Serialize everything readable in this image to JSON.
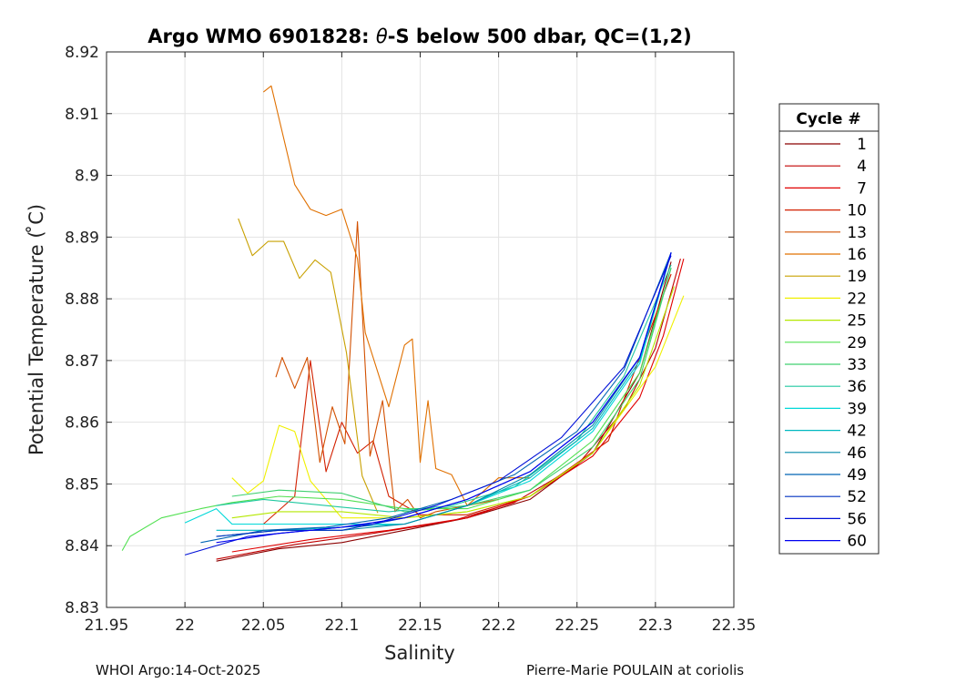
{
  "chart_data": {
    "type": "line",
    "title_prefix": "Argo WMO 6901828: ",
    "title_theta": "θ",
    "title_suffix": "-S below 500 dbar,  QC=(1,2)",
    "xlabel": "Salinity",
    "ylabel": "Potential Temperature ( ̊C)",
    "xlim": [
      21.95,
      22.35
    ],
    "ylim": [
      8.83,
      8.92
    ],
    "xticks": [
      "21.95",
      "22",
      "22.05",
      "22.1",
      "22.15",
      "22.2",
      "22.25",
      "22.3",
      "22.35"
    ],
    "yticks": [
      "8.83",
      "8.84",
      "8.85",
      "8.86",
      "8.87",
      "8.88",
      "8.89",
      "8.9",
      "8.91",
      "8.92"
    ],
    "grid": true,
    "legend_title": "Cycle #",
    "legend_position": "right",
    "series": [
      {
        "name": "1",
        "color": "#8b0000",
        "x": [
          22.02,
          22.06,
          22.1,
          22.14,
          22.18,
          22.22,
          22.26,
          22.29,
          22.31
        ],
        "y": [
          8.8375,
          8.8395,
          8.8405,
          8.8425,
          8.8445,
          8.8475,
          8.855,
          8.868,
          8.886
        ]
      },
      {
        "name": "4",
        "color": "#c00000",
        "x": [
          22.02,
          22.07,
          22.12,
          22.17,
          22.21,
          22.25,
          22.28,
          22.3,
          22.316
        ],
        "y": [
          8.8378,
          8.8402,
          8.842,
          8.844,
          8.847,
          8.853,
          8.862,
          8.872,
          8.8865
        ]
      },
      {
        "name": "7",
        "color": "#e00000",
        "x": [
          22.03,
          22.08,
          22.13,
          22.18,
          22.22,
          22.26,
          22.29,
          22.305,
          22.318
        ],
        "y": [
          8.839,
          8.841,
          8.8425,
          8.8445,
          8.848,
          8.8545,
          8.864,
          8.874,
          8.8865
        ]
      },
      {
        "name": "10",
        "color": "#d22000",
        "x": [
          22.05,
          22.07,
          22.08,
          22.09,
          22.1,
          22.11,
          22.12,
          22.13,
          22.15,
          22.18,
          22.22,
          22.27,
          22.31
        ],
        "y": [
          8.8435,
          8.848,
          8.87,
          8.852,
          8.86,
          8.855,
          8.857,
          8.848,
          8.845,
          8.845,
          8.848,
          8.857,
          8.884
        ]
      },
      {
        "name": "13",
        "color": "#d25000",
        "x": [
          22.058,
          22.062,
          22.07,
          22.078,
          22.086,
          22.094,
          22.102,
          22.11,
          22.118,
          22.126,
          22.134,
          22.142,
          22.15,
          22.16,
          22.2
        ],
        "y": [
          8.8673,
          8.8705,
          8.8655,
          8.8705,
          8.8535,
          8.8625,
          8.8565,
          8.8925,
          8.8545,
          8.8635,
          8.8455,
          8.8475,
          8.8445,
          8.8455,
          8.8475
        ]
      },
      {
        "name": "16",
        "color": "#e07000",
        "x": [
          22.05,
          22.055,
          22.07,
          22.08,
          22.09,
          22.1,
          22.11,
          22.115,
          22.13,
          22.14,
          22.145,
          22.15,
          22.155,
          22.16,
          22.17,
          22.18,
          22.2,
          22.22
        ],
        "y": [
          8.9135,
          8.9145,
          8.8985,
          8.8945,
          8.8935,
          8.8945,
          8.8865,
          8.8745,
          8.8625,
          8.8725,
          8.8735,
          8.8535,
          8.8635,
          8.8525,
          8.8515,
          8.8465,
          8.851,
          8.851
        ]
      },
      {
        "name": "19",
        "color": "#c8a000",
        "x": [
          22.034,
          22.043,
          22.053,
          22.063,
          22.073,
          22.083,
          22.093,
          22.103,
          22.113,
          22.123
        ],
        "y": [
          8.893,
          8.887,
          8.8893,
          8.8893,
          8.8833,
          8.8863,
          8.8843,
          8.8713,
          8.8513,
          8.8453
        ]
      },
      {
        "name": "22",
        "color": "#f0f000",
        "x": [
          22.03,
          22.04,
          22.05,
          22.06,
          22.07,
          22.08,
          22.1,
          22.14,
          22.18,
          22.22,
          22.26,
          22.3,
          22.318
        ],
        "y": [
          8.851,
          8.8485,
          8.8505,
          8.8595,
          8.8585,
          8.8505,
          8.8445,
          8.8445,
          8.8455,
          8.848,
          8.855,
          8.869,
          8.8805
        ]
      },
      {
        "name": "25",
        "color": "#b4e800",
        "x": [
          22.03,
          22.06,
          22.1,
          22.14,
          22.18,
          22.22,
          22.26,
          22.29,
          22.312
        ],
        "y": [
          8.8445,
          8.8455,
          8.8455,
          8.8445,
          8.8455,
          8.848,
          8.855,
          8.866,
          8.882
        ]
      },
      {
        "name": "29",
        "color": "#50e050",
        "x": [
          21.96,
          21.965,
          21.985,
          22.01,
          22.03,
          22.06,
          22.1,
          22.14,
          22.18,
          22.22,
          22.26,
          22.29,
          22.31
        ],
        "y": [
          8.8392,
          8.8415,
          8.8445,
          8.846,
          8.847,
          8.848,
          8.8475,
          8.846,
          8.846,
          8.849,
          8.857,
          8.868,
          8.885
        ]
      },
      {
        "name": "33",
        "color": "#40d070",
        "x": [
          22.03,
          22.06,
          22.1,
          22.14,
          22.18,
          22.22,
          22.26,
          22.29,
          22.31
        ],
        "y": [
          8.848,
          8.849,
          8.8485,
          8.8455,
          8.8465,
          8.849,
          8.856,
          8.867,
          8.885
        ]
      },
      {
        "name": "36",
        "color": "#20c8a0",
        "x": [
          22.02,
          22.05,
          22.09,
          22.13,
          22.17,
          22.21,
          22.25,
          22.28,
          22.31
        ],
        "y": [
          8.8465,
          8.8475,
          8.8465,
          8.8455,
          8.8465,
          8.8495,
          8.857,
          8.8675,
          8.8855
        ]
      },
      {
        "name": "39",
        "color": "#00d8d8",
        "x": [
          22.0,
          22.02,
          22.03,
          22.06,
          22.1,
          22.14,
          22.18,
          22.22,
          22.26,
          22.29,
          22.31
        ],
        "y": [
          8.8437,
          8.846,
          8.8435,
          8.8435,
          8.8435,
          8.8435,
          8.8465,
          8.8505,
          8.8585,
          8.8695,
          8.8875
        ]
      },
      {
        "name": "42",
        "color": "#00b8c0",
        "x": [
          22.02,
          22.06,
          22.1,
          22.14,
          22.18,
          22.22,
          22.26,
          22.29,
          22.31
        ],
        "y": [
          8.8425,
          8.8425,
          8.843,
          8.8435,
          8.8465,
          8.851,
          8.859,
          8.87,
          8.8875
        ]
      },
      {
        "name": "46",
        "color": "#0088a8",
        "x": [
          22.02,
          22.06,
          22.1,
          22.14,
          22.18,
          22.22,
          22.26,
          22.29,
          22.31
        ],
        "y": [
          8.8415,
          8.8425,
          8.8425,
          8.8435,
          8.8465,
          8.8515,
          8.8595,
          8.8705,
          8.8875
        ]
      },
      {
        "name": "49",
        "color": "#0064b4",
        "x": [
          22.01,
          22.05,
          22.09,
          22.13,
          22.17,
          22.21,
          22.25,
          22.28,
          22.31
        ],
        "y": [
          8.8405,
          8.8425,
          8.843,
          8.8445,
          8.8475,
          8.8515,
          8.8585,
          8.8685,
          8.8875
        ]
      },
      {
        "name": "52",
        "color": "#0030c0",
        "x": [
          22.02,
          22.06,
          22.1,
          22.14,
          22.18,
          22.22,
          22.26,
          22.29,
          22.31
        ],
        "y": [
          8.8415,
          8.8425,
          8.8425,
          8.8445,
          8.8475,
          8.852,
          8.86,
          8.8705,
          8.8875
        ]
      },
      {
        "name": "56",
        "color": "#0010d8",
        "x": [
          22.0,
          22.04,
          22.08,
          22.12,
          22.16,
          22.2,
          22.24,
          22.28,
          22.31
        ],
        "y": [
          8.8385,
          8.8415,
          8.8425,
          8.8435,
          8.8465,
          8.8505,
          8.8575,
          8.869,
          8.887
        ]
      },
      {
        "name": "60",
        "color": "#0000f0",
        "x": [
          22.02,
          22.06,
          22.1,
          22.14,
          22.18,
          22.22,
          22.26,
          22.29,
          22.31
        ],
        "y": [
          8.8405,
          8.842,
          8.843,
          8.8445,
          8.8475,
          8.852,
          8.86,
          8.8705,
          8.8875
        ]
      }
    ]
  },
  "footer": {
    "left": "WHOI Argo:14-Oct-2025",
    "right": "Pierre-Marie POULAIN at coriolis"
  }
}
